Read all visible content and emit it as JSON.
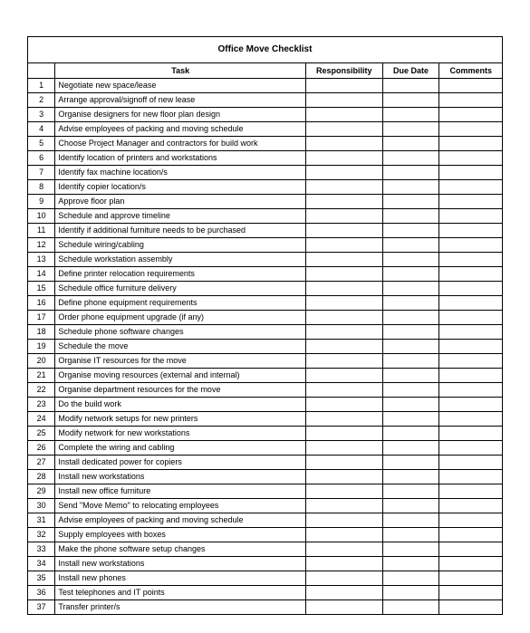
{
  "title": "Office Move Checklist",
  "columns": {
    "task": "Task",
    "responsibility": "Responsibility",
    "due_date": "Due Date",
    "comments": "Comments"
  },
  "rows": [
    {
      "num": "1",
      "task": "Negotiate new space/lease",
      "responsibility": "",
      "due_date": "",
      "comments": ""
    },
    {
      "num": "2",
      "task": "Arrange approval/signoff of new lease",
      "responsibility": "",
      "due_date": "",
      "comments": ""
    },
    {
      "num": "3",
      "task": "Organise designers for new floor plan design",
      "responsibility": "",
      "due_date": "",
      "comments": ""
    },
    {
      "num": "4",
      "task": "Advise employees of packing and moving schedule",
      "responsibility": "",
      "due_date": "",
      "comments": ""
    },
    {
      "num": "5",
      "task": "Choose Project Manager and contractors for build work",
      "responsibility": "",
      "due_date": "",
      "comments": ""
    },
    {
      "num": "6",
      "task": "Identify location of printers and workstations",
      "responsibility": "",
      "due_date": "",
      "comments": ""
    },
    {
      "num": "7",
      "task": "Identify fax machine location/s",
      "responsibility": "",
      "due_date": "",
      "comments": ""
    },
    {
      "num": "8",
      "task": "Identify copier location/s",
      "responsibility": "",
      "due_date": "",
      "comments": ""
    },
    {
      "num": "9",
      "task": "Approve floor plan",
      "responsibility": "",
      "due_date": "",
      "comments": ""
    },
    {
      "num": "10",
      "task": "Schedule and approve timeline",
      "responsibility": "",
      "due_date": "",
      "comments": ""
    },
    {
      "num": "11",
      "task": "Identify if additional furniture needs to be purchased",
      "responsibility": "",
      "due_date": "",
      "comments": ""
    },
    {
      "num": "12",
      "task": "Schedule wiring/cabling",
      "responsibility": "",
      "due_date": "",
      "comments": ""
    },
    {
      "num": "13",
      "task": "Schedule workstation assembly",
      "responsibility": "",
      "due_date": "",
      "comments": ""
    },
    {
      "num": "14",
      "task": "Define printer relocation requirements",
      "responsibility": "",
      "due_date": "",
      "comments": ""
    },
    {
      "num": "15",
      "task": "Schedule office furniture delivery",
      "responsibility": "",
      "due_date": "",
      "comments": ""
    },
    {
      "num": "16",
      "task": "Define phone equipment requirements",
      "responsibility": "",
      "due_date": "",
      "comments": ""
    },
    {
      "num": "17",
      "task": "Order phone equipment upgrade (if any)",
      "responsibility": "",
      "due_date": "",
      "comments": ""
    },
    {
      "num": "18",
      "task": "Schedule phone software changes",
      "responsibility": "",
      "due_date": "",
      "comments": ""
    },
    {
      "num": "19",
      "task": "Schedule the move",
      "responsibility": "",
      "due_date": "",
      "comments": ""
    },
    {
      "num": "20",
      "task": "Organise IT resources for the move",
      "responsibility": "",
      "due_date": "",
      "comments": ""
    },
    {
      "num": "21",
      "task": "Organise moving resources (external and internal)",
      "responsibility": "",
      "due_date": "",
      "comments": ""
    },
    {
      "num": "22",
      "task": "Organise department resources for the move",
      "responsibility": "",
      "due_date": "",
      "comments": ""
    },
    {
      "num": "23",
      "task": "Do the build work",
      "responsibility": "",
      "due_date": "",
      "comments": ""
    },
    {
      "num": "24",
      "task": "Modify network setups for new printers",
      "responsibility": "",
      "due_date": "",
      "comments": ""
    },
    {
      "num": "25",
      "task": "Modify network for new workstations",
      "responsibility": "",
      "due_date": "",
      "comments": ""
    },
    {
      "num": "26",
      "task": "Complete the wiring and cabling",
      "responsibility": "",
      "due_date": "",
      "comments": ""
    },
    {
      "num": "27",
      "task": "Install dedicated power for copiers",
      "responsibility": "",
      "due_date": "",
      "comments": ""
    },
    {
      "num": "28",
      "task": "Install new workstations",
      "responsibility": "",
      "due_date": "",
      "comments": ""
    },
    {
      "num": "29",
      "task": "Install new office furniture",
      "responsibility": "",
      "due_date": "",
      "comments": ""
    },
    {
      "num": "30",
      "task": "Send \"Move Memo\" to relocating employees",
      "responsibility": "",
      "due_date": "",
      "comments": ""
    },
    {
      "num": "31",
      "task": "Advise employees of packing and moving schedule",
      "responsibility": "",
      "due_date": "",
      "comments": ""
    },
    {
      "num": "32",
      "task": "Supply employees with boxes",
      "responsibility": "",
      "due_date": "",
      "comments": ""
    },
    {
      "num": "33",
      "task": "Make the phone software setup changes",
      "responsibility": "",
      "due_date": "",
      "comments": ""
    },
    {
      "num": "34",
      "task": "Install new workstations",
      "responsibility": "",
      "due_date": "",
      "comments": ""
    },
    {
      "num": "35",
      "task": "Install new phones",
      "responsibility": "",
      "due_date": "",
      "comments": ""
    },
    {
      "num": "36",
      "task": "Test telephones and IT points",
      "responsibility": "",
      "due_date": "",
      "comments": ""
    },
    {
      "num": "37",
      "task": "Transfer printer/s",
      "responsibility": "",
      "due_date": "",
      "comments": ""
    }
  ],
  "style": {
    "border_color": "#000000",
    "background_color": "#ffffff",
    "font_family": "Arial",
    "title_fontsize": 10,
    "header_fontsize": 9,
    "body_fontsize": 9
  }
}
